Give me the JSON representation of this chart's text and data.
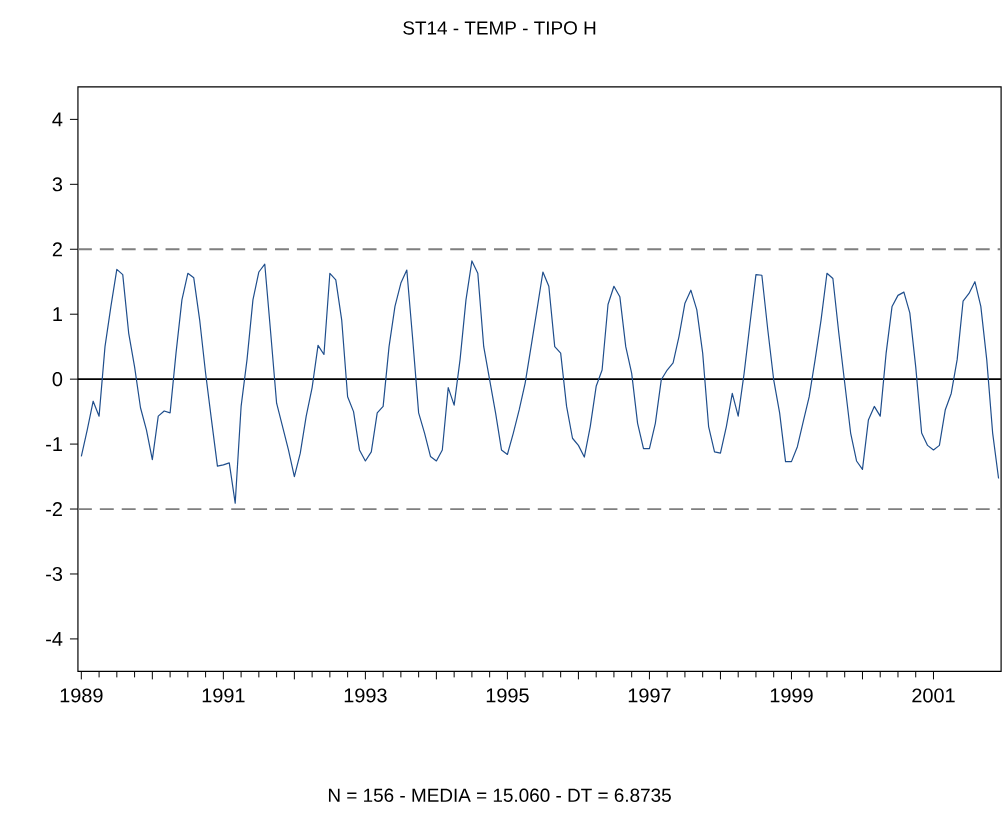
{
  "chart_data": {
    "type": "line",
    "title": "ST14  -  TEMP  -  TIPO H",
    "annotations": [
      "N = 156  -  MEDIA = 15.060  -  DT = 6.8735"
    ],
    "x": [
      "1989-01",
      "1989-02",
      "1989-03",
      "1989-04",
      "1989-05",
      "1989-06",
      "1989-07",
      "1989-08",
      "1989-09",
      "1989-10",
      "1989-11",
      "1989-12",
      "1990-01",
      "1990-02",
      "1990-03",
      "1990-04",
      "1990-05",
      "1990-06",
      "1990-07",
      "1990-08",
      "1990-09",
      "1990-10",
      "1990-11",
      "1990-12",
      "1991-01",
      "1991-02",
      "1991-03",
      "1991-04",
      "1991-05",
      "1991-06",
      "1991-07",
      "1991-08",
      "1991-09",
      "1991-10",
      "1991-11",
      "1991-12",
      "1992-01",
      "1992-02",
      "1992-03",
      "1992-04",
      "1992-05",
      "1992-06",
      "1992-07",
      "1992-08",
      "1992-09",
      "1992-10",
      "1992-11",
      "1992-12",
      "1993-01",
      "1993-02",
      "1993-03",
      "1993-04",
      "1993-05",
      "1993-06",
      "1993-07",
      "1993-08",
      "1993-09",
      "1993-10",
      "1993-11",
      "1993-12",
      "1994-01",
      "1994-02",
      "1994-03",
      "1994-04",
      "1994-05",
      "1994-06",
      "1994-07",
      "1994-08",
      "1994-09",
      "1994-10",
      "1994-11",
      "1994-12",
      "1995-01",
      "1995-02",
      "1995-03",
      "1995-04",
      "1995-05",
      "1995-06",
      "1995-07",
      "1995-08",
      "1995-09",
      "1995-10",
      "1995-11",
      "1995-12",
      "1996-01",
      "1996-02",
      "1996-03",
      "1996-04",
      "1996-05",
      "1996-06",
      "1996-07",
      "1996-08",
      "1996-09",
      "1996-10",
      "1996-11",
      "1996-12",
      "1997-01",
      "1997-02",
      "1997-03",
      "1997-04",
      "1997-05",
      "1997-06",
      "1997-07",
      "1997-08",
      "1997-09",
      "1997-10",
      "1997-11",
      "1997-12",
      "1998-01",
      "1998-02",
      "1998-03",
      "1998-04",
      "1998-05",
      "1998-06",
      "1998-07",
      "1998-08",
      "1998-09",
      "1998-10",
      "1998-11",
      "1998-12",
      "1999-01",
      "1999-02",
      "1999-03",
      "1999-04",
      "1999-05",
      "1999-06",
      "1999-07",
      "1999-08",
      "1999-09",
      "1999-10",
      "1999-11",
      "1999-12",
      "2000-01",
      "2000-02",
      "2000-03",
      "2000-04",
      "2000-05",
      "2000-06",
      "2000-07",
      "2000-08",
      "2000-09",
      "2000-10",
      "2000-11",
      "2000-12",
      "2001-01",
      "2001-02",
      "2001-03",
      "2001-04",
      "2001-05",
      "2001-06",
      "2001-07",
      "2001-08",
      "2001-09",
      "2001-10",
      "2001-11",
      "2001-12"
    ],
    "series": [
      {
        "color": "#1f4e8c",
        "values": [
          -1.19,
          -0.78,
          -0.34,
          -0.57,
          0.5,
          1.12,
          1.69,
          1.61,
          0.71,
          0.19,
          -0.44,
          -0.78,
          -1.24,
          -0.57,
          -0.49,
          -0.52,
          0.4,
          1.22,
          1.63,
          1.56,
          0.91,
          0.09,
          -0.63,
          -1.34,
          -1.32,
          -1.29,
          -1.91,
          -0.42,
          0.3,
          1.22,
          1.65,
          1.77,
          0.71,
          -0.37,
          -0.73,
          -1.09,
          -1.5,
          -1.14,
          -0.57,
          -0.13,
          0.52,
          0.38,
          1.63,
          1.53,
          0.91,
          -0.27,
          -0.5,
          -1.09,
          -1.26,
          -1.12,
          -0.52,
          -0.42,
          0.5,
          1.12,
          1.48,
          1.68,
          0.61,
          -0.52,
          -0.83,
          -1.19,
          -1.26,
          -1.09,
          -0.13,
          -0.4,
          0.3,
          1.22,
          1.82,
          1.63,
          0.5,
          -0.01,
          -0.52,
          -1.09,
          -1.16,
          -0.83,
          -0.47,
          -0.06,
          0.5,
          1.07,
          1.65,
          1.43,
          0.5,
          0.4,
          -0.42,
          -0.91,
          -1.02,
          -1.2,
          -0.73,
          -0.11,
          0.14,
          1.15,
          1.43,
          1.27,
          0.5,
          0.09,
          -0.68,
          -1.07,
          -1.07,
          -0.68,
          -0.01,
          0.14,
          0.25,
          0.66,
          1.17,
          1.37,
          1.07,
          0.4,
          -0.73,
          -1.12,
          -1.14,
          -0.73,
          -0.22,
          -0.57,
          0.09,
          0.86,
          1.61,
          1.6,
          0.76,
          -0.01,
          -0.52,
          -1.27,
          -1.27,
          -1.04,
          -0.65,
          -0.27,
          0.3,
          0.91,
          1.63,
          1.55,
          0.71,
          -0.06,
          -0.83,
          -1.26,
          -1.39,
          -0.63,
          -0.42,
          -0.57,
          0.4,
          1.12,
          1.29,
          1.34,
          1.02,
          0.19,
          -0.83,
          -1.02,
          -1.09,
          -1.02,
          -0.47,
          -0.22,
          0.3,
          1.2,
          1.32,
          1.5,
          1.12,
          0.3,
          -0.83,
          -1.53
        ]
      }
    ],
    "xlim": [
      "1988-12-14",
      "2001-12-14"
    ],
    "ylim": [
      -4.5,
      4.5
    ],
    "xticks": [
      {
        "value": "1989",
        "label": "1989"
      },
      {
        "value": "1990",
        "label": null
      },
      {
        "value": "1991",
        "label": "1991"
      },
      {
        "value": "1992",
        "label": null
      },
      {
        "value": "1993",
        "label": "1993"
      },
      {
        "value": "1994",
        "label": null
      },
      {
        "value": "1995",
        "label": "1995"
      },
      {
        "value": "1996",
        "label": null
      },
      {
        "value": "1997",
        "label": "1997"
      },
      {
        "value": "1998",
        "label": null
      },
      {
        "value": "1999",
        "label": "1999"
      },
      {
        "value": "2000",
        "label": null
      },
      {
        "value": "2001",
        "label": "2001"
      }
    ],
    "yticks": [
      -4,
      -3,
      -2,
      -1,
      0,
      1,
      2,
      3,
      4
    ],
    "ref_lines": [
      {
        "axis": "y",
        "value": 0,
        "color": "#000000",
        "line_style": "solid"
      },
      {
        "axis": "y",
        "value": 2,
        "color": "#7f7f7f",
        "line_style": "dashed"
      },
      {
        "axis": "y",
        "value": -2,
        "color": "#7f7f7f",
        "line_style": "dashed"
      }
    ],
    "grid": false,
    "line_style": "solid",
    "marker": "none"
  }
}
